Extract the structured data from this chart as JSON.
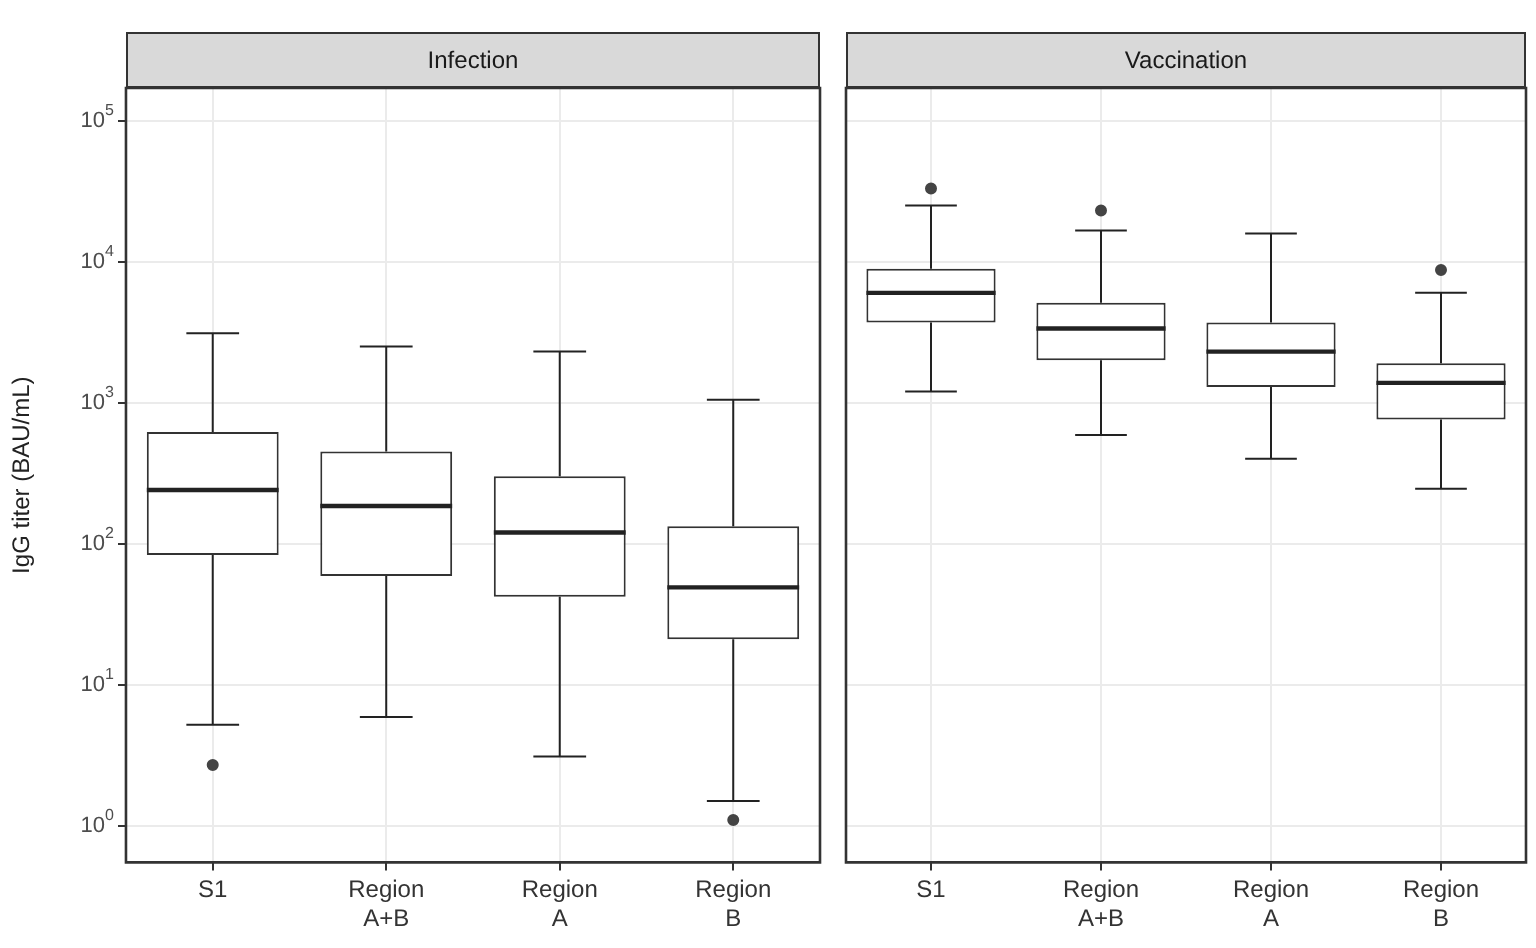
{
  "chart_data": [
    {
      "type": "box",
      "title": "Infection",
      "ylabel": "IgG titer (BAU/mL)",
      "categories": [
        "S1",
        "Region A+B",
        "Region A",
        "Region B"
      ],
      "boxes": [
        {
          "low": 5.2,
          "q1": 83,
          "median": 240,
          "q3": 620,
          "high": 3100,
          "outliers": [
            2.7
          ]
        },
        {
          "low": 5.9,
          "q1": 59,
          "median": 185,
          "q3": 450,
          "high": 2500
        },
        {
          "low": 3.1,
          "q1": 42,
          "median": 120,
          "q3": 300,
          "high": 2300
        },
        {
          "low": 1.5,
          "q1": 21,
          "median": 49,
          "q3": 133,
          "high": 1050,
          "outliers": [
            1.1
          ]
        }
      ],
      "log": "y",
      "ylim": [
        0.55,
        170000
      ],
      "yticks": [
        {
          "value": 1,
          "label": "10$^{0}$"
        },
        {
          "value": 10,
          "label": "10$^{1}$"
        },
        {
          "value": 100,
          "label": "10$^{2}$"
        },
        {
          "value": 1000,
          "label": "10$^{3}$"
        },
        {
          "value": 10000,
          "label": "10$^{4}$"
        },
        {
          "value": 100000,
          "label": "10$^{5}$"
        }
      ],
      "grid": true
    },
    {
      "type": "box",
      "title": "Vaccination",
      "categories": [
        "S1",
        "Region A+B",
        "Region A",
        "Region B"
      ],
      "boxes": [
        {
          "low": 1200,
          "q1": 3700,
          "median": 6000,
          "q3": 8900,
          "high": 25000,
          "outliers": [
            33000
          ]
        },
        {
          "low": 590,
          "q1": 2000,
          "median": 3350,
          "q3": 5100,
          "high": 16600,
          "outliers": [
            23000
          ]
        },
        {
          "low": 400,
          "q1": 1290,
          "median": 2300,
          "q3": 3700,
          "high": 15800
        },
        {
          "low": 245,
          "q1": 760,
          "median": 1380,
          "q3": 1900,
          "high": 6000,
          "outliers": [
            8700
          ]
        }
      ],
      "log": "y",
      "ylim": [
        0.55,
        170000
      ],
      "yticks": [
        {
          "value": 1,
          "label": null
        },
        {
          "value": 10,
          "label": null
        },
        {
          "value": 100,
          "label": null
        },
        {
          "value": 1000,
          "label": null
        },
        {
          "value": 10000,
          "label": null
        },
        {
          "value": 100000,
          "label": null
        }
      ],
      "grid": true,
      "tick_labels": "x"
    }
  ]
}
